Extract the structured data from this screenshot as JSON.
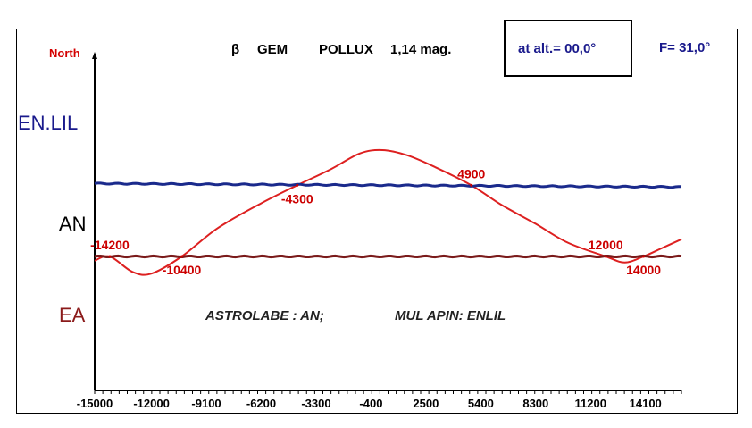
{
  "header": {
    "north_label": "North",
    "star_symbol": "β",
    "constellation": "GEM",
    "star_name": "POLLUX",
    "magnitude": "1,14 mag.",
    "altitude_text": "at alt.= 00,0°",
    "f_text": "F= 31,0°"
  },
  "zones": {
    "enlil": "EN.LIL",
    "an": "AN",
    "ea": "EA"
  },
  "subtitle": {
    "astrolabe": "ASTROLABE :  AN;",
    "mul_apin": "MUL APIN:  ENLIL"
  },
  "colors": {
    "enlil_line": "#1a2a8c",
    "ea_line": "#7a1a1a",
    "curve": "#dd2020",
    "labels": "#cc0000"
  },
  "chart_data": {
    "type": "line",
    "x_tick_labels": [
      "-15000",
      "-12000",
      "-9100",
      "-6200",
      "-3300",
      "-400",
      "2500",
      "5400",
      "8300",
      "11200",
      "14100"
    ],
    "x_ticks": [
      -15000,
      -12000,
      -9100,
      -6200,
      -3300,
      -400,
      2500,
      5400,
      8300,
      11200,
      14100
    ],
    "xlim": [
      -15000,
      16000
    ],
    "series": [
      {
        "name": "",
        "color_key": "curve",
        "points": [
          [
            -15000,
            -0.05
          ],
          [
            -14200,
            0.0
          ],
          [
            -13000,
            -0.18
          ],
          [
            -12000,
            -0.2
          ],
          [
            -10400,
            0.0
          ],
          [
            -8500,
            0.33
          ],
          [
            -6200,
            0.62
          ],
          [
            -4300,
            0.83
          ],
          [
            -2500,
            1.02
          ],
          [
            -1000,
            1.2
          ],
          [
            200,
            1.24
          ],
          [
            1500,
            1.18
          ],
          [
            3000,
            1.04
          ],
          [
            4900,
            0.83
          ],
          [
            6500,
            0.6
          ],
          [
            8300,
            0.38
          ],
          [
            10000,
            0.16
          ],
          [
            12000,
            0.0
          ],
          [
            13000,
            -0.07
          ],
          [
            14000,
            0.0
          ],
          [
            15000,
            0.1
          ],
          [
            16000,
            0.2
          ]
        ]
      },
      {
        "name": "",
        "color_key": "enlil_line",
        "points": [
          [
            -15000,
            0.85
          ],
          [
            16000,
            0.81
          ]
        ]
      },
      {
        "name": "",
        "color_key": "ea_line",
        "points": [
          [
            -15000,
            0.0
          ],
          [
            16000,
            0.0
          ]
        ]
      }
    ],
    "data_labels": [
      {
        "text": "-14200",
        "x": -14200,
        "y": 0.0,
        "pos": "above"
      },
      {
        "text": "-10400",
        "x": -10400,
        "y": 0.0,
        "pos": "below"
      },
      {
        "text": "-4300",
        "x": -4300,
        "y": 0.83,
        "pos": "below"
      },
      {
        "text": "4900",
        "x": 4900,
        "y": 0.83,
        "pos": "above"
      },
      {
        "text": "12000",
        "x": 12000,
        "y": 0.0,
        "pos": "above"
      },
      {
        "text": "14000",
        "x": 14000,
        "y": 0.0,
        "pos": "below"
      }
    ],
    "grid": false
  }
}
